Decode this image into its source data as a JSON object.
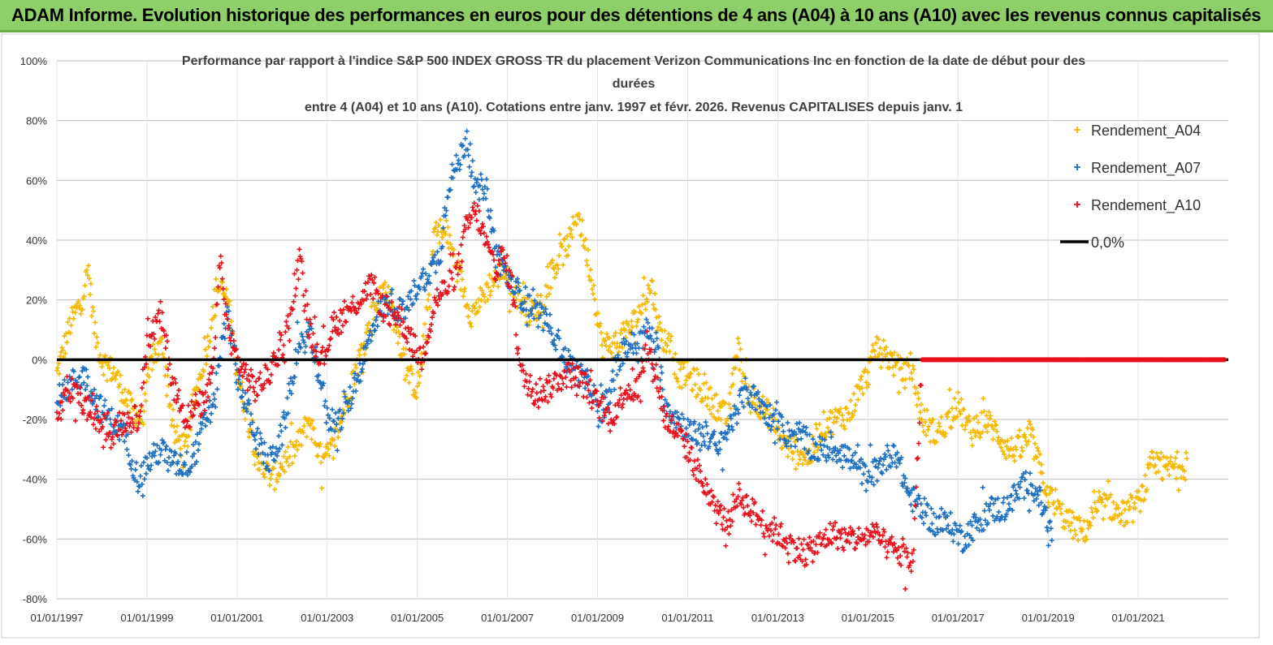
{
  "banner": {
    "title": "ADAM Informe. Evolution historique des performances en euros pour des détentions de 4 ans (A04) à 10 ans (A10) avec les revenus connus capitalisés"
  },
  "colors": {
    "banner_bg": "#8fcf6a",
    "A04": "#f5b800",
    "A07": "#1f6fc0",
    "A10": "#e8101a",
    "zero_line": "#000000",
    "grid": "#bfbfbf"
  },
  "chart_data": {
    "type": "scatter",
    "title_lines": [
      "Performance par rapport à l'indice S&P 500 INDEX GROSS TR  du placement Verizon Communications Inc en fonction de la date de début pour des",
      "durées",
      "entre 4 (A04) et 10 ans (A10).  Cotations entre janv. 1997 et févr.  2026. Revenus CAPITALISES depuis janv. 1"
    ],
    "x_ticks": [
      "01/01/1997",
      "01/01/1999",
      "01/01/2001",
      "01/01/2003",
      "01/01/2005",
      "01/01/2007",
      "01/01/2009",
      "01/01/2011",
      "01/01/2013",
      "01/01/2015",
      "01/01/2017",
      "01/01/2019",
      "01/01/2021"
    ],
    "x_range_years": [
      1997.0,
      2023.0
    ],
    "y_ticks": [
      "100%",
      "80%",
      "60%",
      "40%",
      "20%",
      "0%",
      "-20%",
      "-40%",
      "-60%",
      "-80%"
    ],
    "ylim": [
      -80,
      100
    ],
    "grid": "horizontal",
    "legend_position": "top-right",
    "series": [
      {
        "name": "Rendement_A04",
        "marker": "+",
        "x": [
          1997.0,
          1997.3,
          1997.55,
          1997.7,
          1997.85,
          1998.0,
          1998.3,
          1998.6,
          1998.9,
          1999.1,
          1999.35,
          1999.6,
          1999.85,
          2000.1,
          2000.35,
          2000.55,
          2000.8,
          2001.0,
          2001.25,
          2001.5,
          2001.8,
          2002.0,
          2002.3,
          2002.6,
          2002.9,
          2003.1,
          2003.4,
          2003.7,
          2004.0,
          2004.3,
          2004.55,
          2004.8,
          2005.0,
          2005.15,
          2005.4,
          2005.7,
          2006.0,
          2006.2,
          2006.4,
          2006.6,
          2006.9,
          2007.2,
          2007.5,
          2007.8,
          2008.0,
          2008.2,
          2008.4,
          2008.55,
          2008.7,
          2008.9,
          2009.1,
          2009.4,
          2009.7,
          2009.9,
          2010.05,
          2010.2,
          2010.4,
          2010.6,
          2010.8,
          2011.0,
          2011.3,
          2011.6,
          2011.9,
          2012.1,
          2012.3,
          2012.6,
          2012.9,
          2013.1,
          2013.4,
          2013.7,
          2014.0,
          2014.3,
          2014.6,
          2014.8,
          2015.0,
          2015.2,
          2015.5,
          2015.8,
          2016.0,
          2016.2,
          2016.5,
          2016.8,
          2017.0,
          2017.3,
          2017.6,
          2017.9,
          2018.1,
          2018.4,
          2018.6,
          2018.8,
          2019.0,
          2019.2,
          2019.5,
          2019.8,
          2020.0,
          2020.3,
          2020.6,
          2020.9,
          2021.1,
          2021.3,
          2021.6,
          2021.9,
          2022.1
        ],
        "y": [
          -5,
          12,
          20,
          30,
          8,
          0,
          -5,
          -15,
          -20,
          0,
          5,
          -25,
          -30,
          -10,
          5,
          25,
          20,
          -5,
          -20,
          -35,
          -40,
          -35,
          -30,
          -20,
          -35,
          -30,
          -15,
          0,
          15,
          25,
          10,
          -5,
          -10,
          5,
          45,
          40,
          25,
          15,
          20,
          25,
          30,
          22,
          15,
          20,
          30,
          35,
          40,
          50,
          40,
          25,
          5,
          5,
          10,
          15,
          20,
          25,
          8,
          5,
          -5,
          -5,
          -10,
          -15,
          -20,
          5,
          -10,
          -15,
          -20,
          -28,
          -30,
          -33,
          -22,
          -20,
          -18,
          -10,
          -5,
          5,
          0,
          -5,
          -5,
          -20,
          -25,
          -20,
          -15,
          -25,
          -20,
          -25,
          -30,
          -30,
          -25,
          -35,
          -45,
          -50,
          -55,
          -58,
          -52,
          -48,
          -52,
          -50,
          -45,
          -35,
          -37,
          -35,
          -35
        ]
      },
      {
        "name": "Rendement_A07",
        "marker": "+",
        "x": [
          1997.0,
          1997.3,
          1997.6,
          1997.9,
          1998.2,
          1998.5,
          1998.8,
          1999.0,
          1999.3,
          1999.6,
          1999.9,
          2000.1,
          2000.3,
          2000.5,
          2000.6,
          2000.8,
          2001.0,
          2001.2,
          2001.4,
          2001.7,
          2002.0,
          2002.3,
          2002.6,
          2002.9,
          2003.0,
          2003.3,
          2003.6,
          2003.9,
          2004.1,
          2004.4,
          2004.7,
          2005.0,
          2005.3,
          2005.5,
          2005.7,
          2005.9,
          2006.1,
          2006.3,
          2006.5,
          2006.7,
          2006.9,
          2007.1,
          2007.4,
          2007.7,
          2008.0,
          2008.3,
          2008.6,
          2008.9,
          2009.0,
          2009.3,
          2009.6,
          2009.9,
          2010.1,
          2010.3,
          2010.5,
          2010.8,
          2011.1,
          2011.4,
          2011.7,
          2012.0,
          2012.3,
          2012.6,
          2012.9,
          2013.2,
          2013.5,
          2013.8,
          2014.1,
          2014.4,
          2014.7,
          2015.0,
          2015.3,
          2015.6,
          2015.9,
          2016.2,
          2016.5,
          2016.8,
          2017.1,
          2017.4,
          2017.7,
          2018.0,
          2018.3,
          2018.6,
          2018.9,
          2019.1
        ],
        "y": [
          -15,
          -8,
          -5,
          -15,
          -20,
          -25,
          -40,
          -35,
          -30,
          -35,
          -35,
          -30,
          -20,
          -15,
          0,
          15,
          -5,
          -15,
          -25,
          -35,
          -25,
          0,
          10,
          -10,
          -20,
          -20,
          -10,
          5,
          15,
          20,
          15,
          25,
          30,
          35,
          60,
          65,
          75,
          55,
          60,
          40,
          30,
          25,
          20,
          15,
          10,
          0,
          -5,
          -10,
          -20,
          -10,
          5,
          5,
          10,
          5,
          -15,
          -20,
          -25,
          -25,
          -30,
          -20,
          -10,
          -15,
          -20,
          -25,
          -25,
          -30,
          -30,
          -30,
          -35,
          -40,
          -35,
          -30,
          -45,
          -50,
          -55,
          -55,
          -60,
          -55,
          -50,
          -50,
          -45,
          -40,
          -50,
          -60
        ]
      },
      {
        "name": "Rendement_A10",
        "marker": "+",
        "x": [
          1997.0,
          1997.3,
          1997.6,
          1997.9,
          1998.2,
          1998.5,
          1998.8,
          1999.0,
          1999.3,
          1999.6,
          1999.9,
          2000.1,
          2000.3,
          2000.5,
          2000.6,
          2000.8,
          2001.0,
          2001.2,
          2001.4,
          2001.7,
          2002.0,
          2002.2,
          2002.4,
          2002.6,
          2002.9,
          2003.1,
          2003.4,
          2003.7,
          2004.0,
          2004.3,
          2004.6,
          2004.9,
          2005.1,
          2005.4,
          2005.7,
          2005.9,
          2006.1,
          2006.3,
          2006.5,
          2006.7,
          2006.9,
          2007.1,
          2007.3,
          2007.6,
          2007.9,
          2008.2,
          2008.5,
          2008.8,
          2009.0,
          2009.3,
          2009.6,
          2009.9,
          2010.1,
          2010.3,
          2010.5,
          2010.8,
          2011.0,
          2011.3,
          2011.6,
          2011.9,
          2012.1,
          2012.4,
          2012.7,
          2013.0,
          2013.3,
          2013.6,
          2013.9,
          2014.2,
          2014.5,
          2014.8,
          2015.1,
          2015.4,
          2015.7,
          2016.0,
          2016.2
        ],
        "y": [
          -20,
          -10,
          -15,
          -20,
          -25,
          -20,
          -20,
          5,
          15,
          -10,
          -20,
          -15,
          -15,
          0,
          35,
          10,
          0,
          -5,
          -10,
          -5,
          5,
          15,
          35,
          10,
          0,
          10,
          15,
          20,
          25,
          15,
          15,
          5,
          0,
          20,
          25,
          30,
          45,
          50,
          40,
          30,
          35,
          25,
          -5,
          -10,
          -10,
          -5,
          -5,
          -10,
          -15,
          -20,
          -10,
          -10,
          5,
          -5,
          -20,
          -25,
          -30,
          -40,
          -50,
          -55,
          -45,
          -50,
          -55,
          -58,
          -62,
          -65,
          -62,
          -58,
          -60,
          -60,
          -58,
          -62,
          -65,
          -68,
          0
        ]
      },
      {
        "name": "0,0%",
        "type": "line"
      }
    ]
  }
}
